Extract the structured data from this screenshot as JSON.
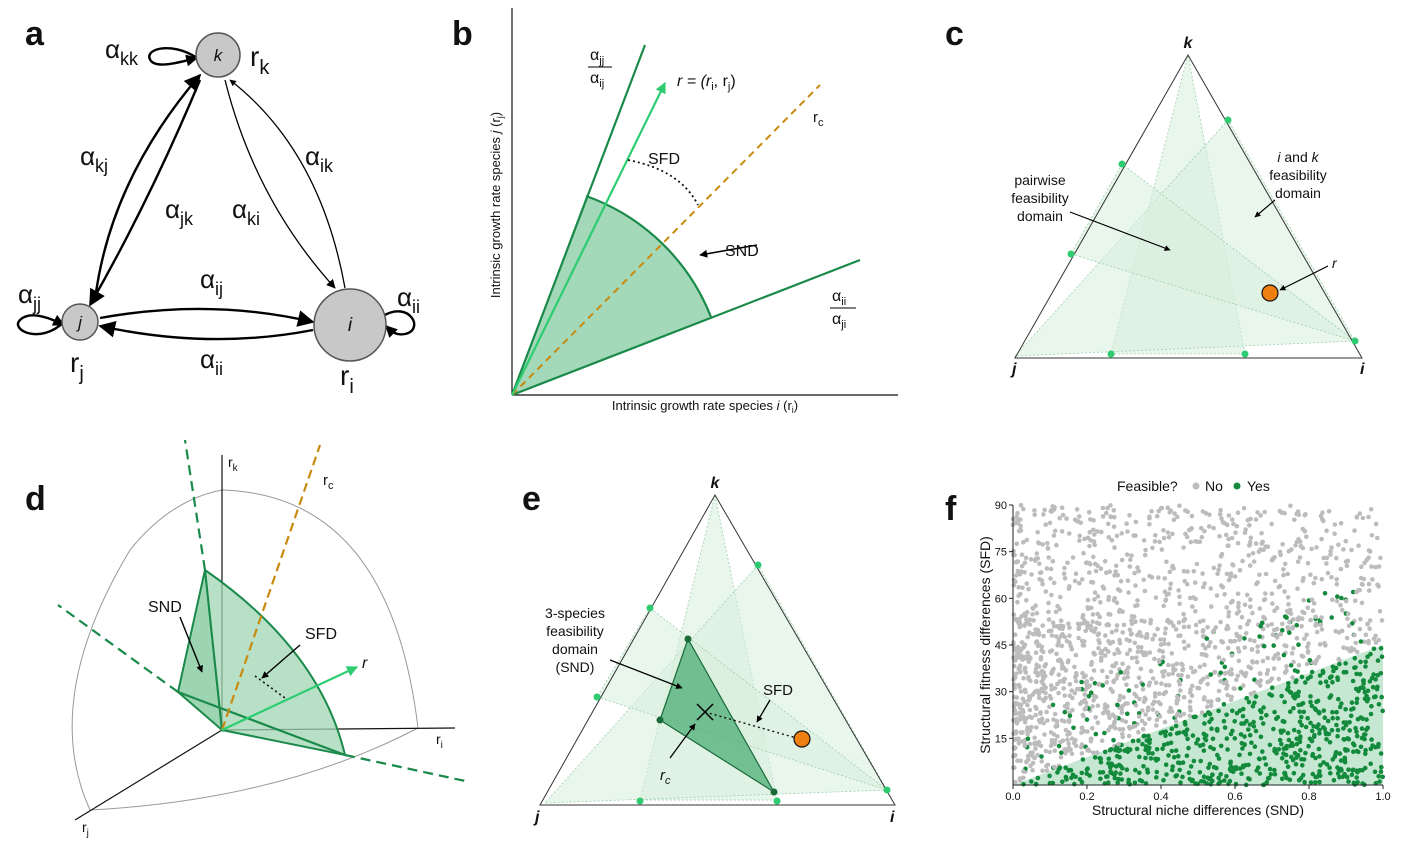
{
  "panels": {
    "a": {
      "label": "a",
      "nodes": {
        "k": "k",
        "j": "j",
        "i": "i"
      },
      "growth": {
        "rk": "r",
        "rk_sub": "k",
        "rj": "r",
        "rj_sub": "j",
        "ri": "r",
        "ri_sub": "i"
      },
      "alphas": {
        "kk": "α",
        "kk_sub": "kk",
        "kj": "α",
        "kj_sub": "kj",
        "jk": "α",
        "jk_sub": "jk",
        "ki": "α",
        "ki_sub": "ki",
        "ik": "α",
        "ik_sub": "ik",
        "jj": "α",
        "jj_sub": "jj",
        "ij": "α",
        "ij_sub": "ij",
        "ii_bottom": "α",
        "ii_bottom_sub": "ii",
        "ii": "α",
        "ii_sub": "ii"
      }
    },
    "b": {
      "label": "b",
      "xlabel_pre": "Intrinsic growth rate species ",
      "xlabel_var": "i",
      "xlabel_post": " (r",
      "xlabel_sub": "i",
      "xlabel_close": ")",
      "ylabel_pre": "Intrinsic growth rate species ",
      "ylabel_var": "j",
      "ylabel_post": " (r",
      "ylabel_sub": "j",
      "ylabel_close": ")",
      "frac_top_num": "α",
      "frac_top_num_sub": "jj",
      "frac_top_den": "α",
      "frac_top_den_sub": "ij",
      "frac_bot_num": "α",
      "frac_bot_num_sub": "ii",
      "frac_bot_den": "α",
      "frac_bot_den_sub": "ji",
      "r_vector": "r = (r",
      "r_vector_i": "i",
      "r_vector_mid": ", r",
      "r_vector_j": "j",
      "r_vector_end": ")",
      "rc": "r",
      "rc_sub": "c",
      "sfd": "SFD",
      "snd": "SND"
    },
    "c": {
      "label": "c",
      "vertex_k": "k",
      "vertex_j": "j",
      "vertex_i": "i",
      "pairwise_line1": "pairwise",
      "pairwise_line2": "feasibility",
      "pairwise_line3": "domain",
      "ik_line1_a": "i",
      "ik_line1_b": " and ",
      "ik_line1_c": "k",
      "ik_line2": "feasibility",
      "ik_line3": "domain",
      "r": "r"
    },
    "d": {
      "label": "d",
      "rk": "r",
      "rk_sub": "k",
      "rc": "r",
      "rc_sub": "c",
      "ri": "r",
      "ri_sub": "i",
      "rj": "r",
      "rj_sub": "j",
      "snd": "SND",
      "sfd": "SFD",
      "r": "r"
    },
    "e": {
      "label": "e",
      "vertex_k": "k",
      "vertex_j": "j",
      "vertex_i": "i",
      "domain_line1": "3-species",
      "domain_line2": "feasibility",
      "domain_line3": "domain",
      "domain_line4": "(SND)",
      "sfd": "SFD",
      "rc": "r",
      "rc_sub": "c"
    },
    "f": {
      "label": "f",
      "legend_title": "Feasible?",
      "legend_no": "No",
      "legend_yes": "Yes",
      "xlabel": "Structural niche differences (SND)",
      "ylabel": "Structural fitness differences (SFD)"
    }
  },
  "colors": {
    "dark_green": "#1a8a4a",
    "light_green": "#2ecc71",
    "shade_green": "#7cc79a",
    "orange": "#f07f12",
    "rc_orange": "#c98a10",
    "gray_point": "#bcbcbc",
    "green_point": "#138a3c"
  },
  "chart_data": {
    "type": "scatter",
    "xlabel": "Structural niche differences (SND)",
    "ylabel": "Structural fitness differences (SFD)",
    "xlim": [
      0,
      1
    ],
    "ylim": [
      0,
      90
    ],
    "x_ticks": [
      "0.0",
      "0.2",
      "0.4",
      "0.6",
      "0.8",
      "1.0"
    ],
    "y_ticks": [
      "15",
      "30",
      "45",
      "60",
      "75",
      "90"
    ],
    "legend": {
      "title": "Feasible?",
      "placement": "top",
      "entries": [
        "No",
        "Yes"
      ]
    },
    "feasible_boundary": {
      "x": [
        0,
        1
      ],
      "y": [
        0,
        45
      ]
    },
    "n_points_approx": 2200,
    "series": [
      {
        "name": "No",
        "color": "#bcbcbc"
      },
      {
        "name": "Yes",
        "color": "#138a3c"
      }
    ]
  }
}
